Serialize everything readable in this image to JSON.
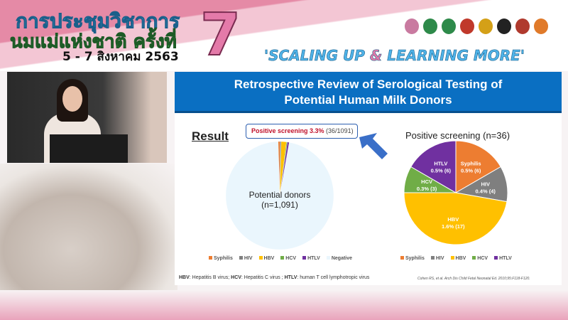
{
  "banner": {
    "title_line1": "การประชุมวิชาการ",
    "title_line2": "นมแม่แห่งชาติ ครั้งที่",
    "date": "5 - 7 สิงหาคม 2563",
    "edition": "7",
    "slogan_part1": "'SCALING UP ",
    "slogan_amp": "&",
    "slogan_part2": " LEARNING MORE'",
    "logo_colors": [
      "#c97aa0",
      "#2e8a4a",
      "#2e8a4a",
      "#c0392b",
      "#d4a017",
      "#222222",
      "#b03a2e",
      "#e07a2a"
    ]
  },
  "slide": {
    "title_line1": "Retrospective Review of Serological Testing of",
    "title_line2": "Potential Human Milk Donors",
    "result_heading": "Result",
    "callout_bold": "Positive screening 3.3%",
    "callout_rest": " (36/1091)",
    "left_center_line1": "Potential donors",
    "left_center_line2": "(n=1,091)",
    "footnote": {
      "hbv": "HBV",
      "hbv_def": ": Hepatitis B virus; ",
      "hcv": "HCV",
      "hcv_def": ": Hepatitis C virus ; ",
      "htlv": "HTLV",
      "htlv_def": ": human T cell lymphotropic virus"
    },
    "citation": "Cohen RS, et al. Arch Dis Child Fetal Neonatal Ed. 2010;95:F118-F120."
  },
  "chart_data": [
    {
      "type": "pie",
      "title": "",
      "categories": [
        "Syphilis",
        "HIV",
        "HBV",
        "HCV",
        "HTLV",
        "Negative"
      ],
      "values": [
        6,
        4,
        17,
        3,
        6,
        1055
      ],
      "colors": [
        "#ed7d31",
        "#7f7f7f",
        "#ffc000",
        "#70ad47",
        "#7030a0",
        "#eaf6fd"
      ],
      "legend": "bottom"
    },
    {
      "type": "pie",
      "title": "Positive screening (n=36)",
      "categories": [
        "Syphilis",
        "HIV",
        "HBV",
        "HCV",
        "HTLV"
      ],
      "values": [
        6,
        4,
        17,
        3,
        6
      ],
      "labels": [
        "0.5% (6)",
        "0.4% (4)",
        "1.6% (17)",
        "0.3% (3)",
        "0.5% (6)"
      ],
      "colors": [
        "#ed7d31",
        "#7f7f7f",
        "#ffc000",
        "#70ad47",
        "#7030a0"
      ],
      "legend": "bottom"
    }
  ]
}
